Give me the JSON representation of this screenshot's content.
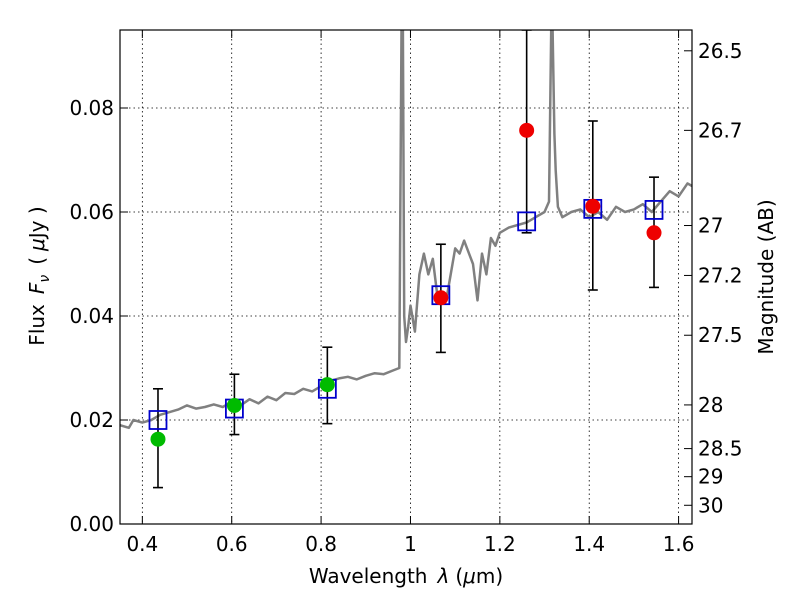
{
  "chart_data": {
    "type": "scatter",
    "xlabel_text": "Wavelength",
    "xlabel_symbol": "λ",
    "xlabel_unit_open": "(",
    "xlabel_unit_mu": "μ",
    "xlabel_unit_rest": "m)",
    "ylabel_text": "Flux",
    "ylabel_symbol": "F",
    "ylabel_symbol_sub": "ν",
    "ylabel_unit_open": "(",
    "ylabel_unit_mu": "μ",
    "ylabel_unit_rest": "Jy )",
    "y2label": "Magnitude (AB)",
    "xlim": [
      0.35,
      1.63
    ],
    "ylim": [
      0.0,
      0.095
    ],
    "grid": true,
    "xticks": [
      0.4,
      0.6,
      0.8,
      1.0,
      1.2,
      1.4,
      1.6
    ],
    "xtick_labels": [
      "0.4",
      "0.6",
      "0.8",
      "1",
      "1.2",
      "1.4",
      "1.6"
    ],
    "yticks": [
      0.0,
      0.02,
      0.04,
      0.06,
      0.08
    ],
    "ytick_labels": [
      "0.00",
      "0.02",
      "0.04",
      "0.06",
      "0.08"
    ],
    "y2ticks": [
      {
        "label": "26.5",
        "flux": 0.091
      },
      {
        "label": "26.7",
        "flux": 0.0757
      },
      {
        "label": "27",
        "flux": 0.0574
      },
      {
        "label": "27.2",
        "flux": 0.0478
      },
      {
        "label": "27.5",
        "flux": 0.0363
      },
      {
        "label": "28",
        "flux": 0.0229
      },
      {
        "label": "28.5",
        "flux": 0.0145
      },
      {
        "label": "29",
        "flux": 0.0091
      },
      {
        "label": "30",
        "flux": 0.0036
      }
    ],
    "series": [
      {
        "marker": "open-square",
        "color": "#0000cc",
        "points": [
          {
            "x": 0.435,
            "y": 0.02
          },
          {
            "x": 0.606,
            "y": 0.0222
          },
          {
            "x": 0.814,
            "y": 0.026
          },
          {
            "x": 1.068,
            "y": 0.044
          },
          {
            "x": 1.26,
            "y": 0.0582
          },
          {
            "x": 1.408,
            "y": 0.0606
          },
          {
            "x": 1.545,
            "y": 0.0604
          }
        ]
      },
      {
        "marker": "filled-circle",
        "color": "#00bb00",
        "points": [
          {
            "x": 0.435,
            "y": 0.0163,
            "err_low": 0.007,
            "err_high": 0.026
          },
          {
            "x": 0.606,
            "y": 0.0228,
            "err_low": 0.0172,
            "err_high": 0.0288
          },
          {
            "x": 0.814,
            "y": 0.0268,
            "err_low": 0.0193,
            "err_high": 0.034
          }
        ]
      },
      {
        "marker": "filled-circle",
        "color": "#ee0000",
        "points": [
          {
            "x": 1.068,
            "y": 0.0435,
            "err_low": 0.033,
            "err_high": 0.0538
          },
          {
            "x": 1.26,
            "y": 0.0757,
            "err_low": 0.056,
            "err_high": 0.095
          },
          {
            "x": 1.408,
            "y": 0.0611,
            "err_low": 0.045,
            "err_high": 0.0775
          },
          {
            "x": 1.545,
            "y": 0.056,
            "err_low": 0.0455,
            "err_high": 0.0667
          }
        ]
      }
    ],
    "model_spectrum": {
      "color": "#808080",
      "x": [
        0.35,
        0.37,
        0.38,
        0.4,
        0.42,
        0.44,
        0.46,
        0.48,
        0.5,
        0.52,
        0.54,
        0.56,
        0.58,
        0.6,
        0.62,
        0.64,
        0.66,
        0.68,
        0.7,
        0.72,
        0.74,
        0.76,
        0.78,
        0.8,
        0.82,
        0.84,
        0.86,
        0.88,
        0.9,
        0.92,
        0.94,
        0.96,
        0.975,
        0.98,
        0.983,
        0.986,
        0.99,
        0.995,
        1.0,
        1.01,
        1.02,
        1.03,
        1.04,
        1.05,
        1.06,
        1.08,
        1.1,
        1.11,
        1.12,
        1.14,
        1.15,
        1.16,
        1.17,
        1.18,
        1.19,
        1.2,
        1.22,
        1.24,
        1.26,
        1.28,
        1.3,
        1.31,
        1.315,
        1.318,
        1.322,
        1.325,
        1.33,
        1.34,
        1.36,
        1.38,
        1.4,
        1.42,
        1.44,
        1.46,
        1.48,
        1.5,
        1.52,
        1.54,
        1.56,
        1.58,
        1.6,
        1.62,
        1.63
      ],
      "y": [
        0.019,
        0.0185,
        0.02,
        0.0195,
        0.02,
        0.021,
        0.0215,
        0.022,
        0.0228,
        0.0222,
        0.0225,
        0.023,
        0.0225,
        0.0235,
        0.0228,
        0.024,
        0.0232,
        0.0245,
        0.0238,
        0.0252,
        0.025,
        0.026,
        0.0255,
        0.0265,
        0.0275,
        0.028,
        0.0283,
        0.0278,
        0.0285,
        0.029,
        0.0288,
        0.0295,
        0.03,
        0.095,
        0.095,
        0.04,
        0.035,
        0.038,
        0.042,
        0.037,
        0.048,
        0.052,
        0.048,
        0.051,
        0.044,
        0.043,
        0.053,
        0.052,
        0.0545,
        0.05,
        0.043,
        0.052,
        0.048,
        0.055,
        0.0535,
        0.056,
        0.057,
        0.0575,
        0.058,
        0.059,
        0.06,
        0.062,
        0.095,
        0.095,
        0.075,
        0.068,
        0.061,
        0.059,
        0.06,
        0.0605,
        0.059,
        0.06,
        0.0585,
        0.061,
        0.06,
        0.0605,
        0.0615,
        0.06,
        0.062,
        0.064,
        0.063,
        0.0655,
        0.065
      ]
    }
  }
}
